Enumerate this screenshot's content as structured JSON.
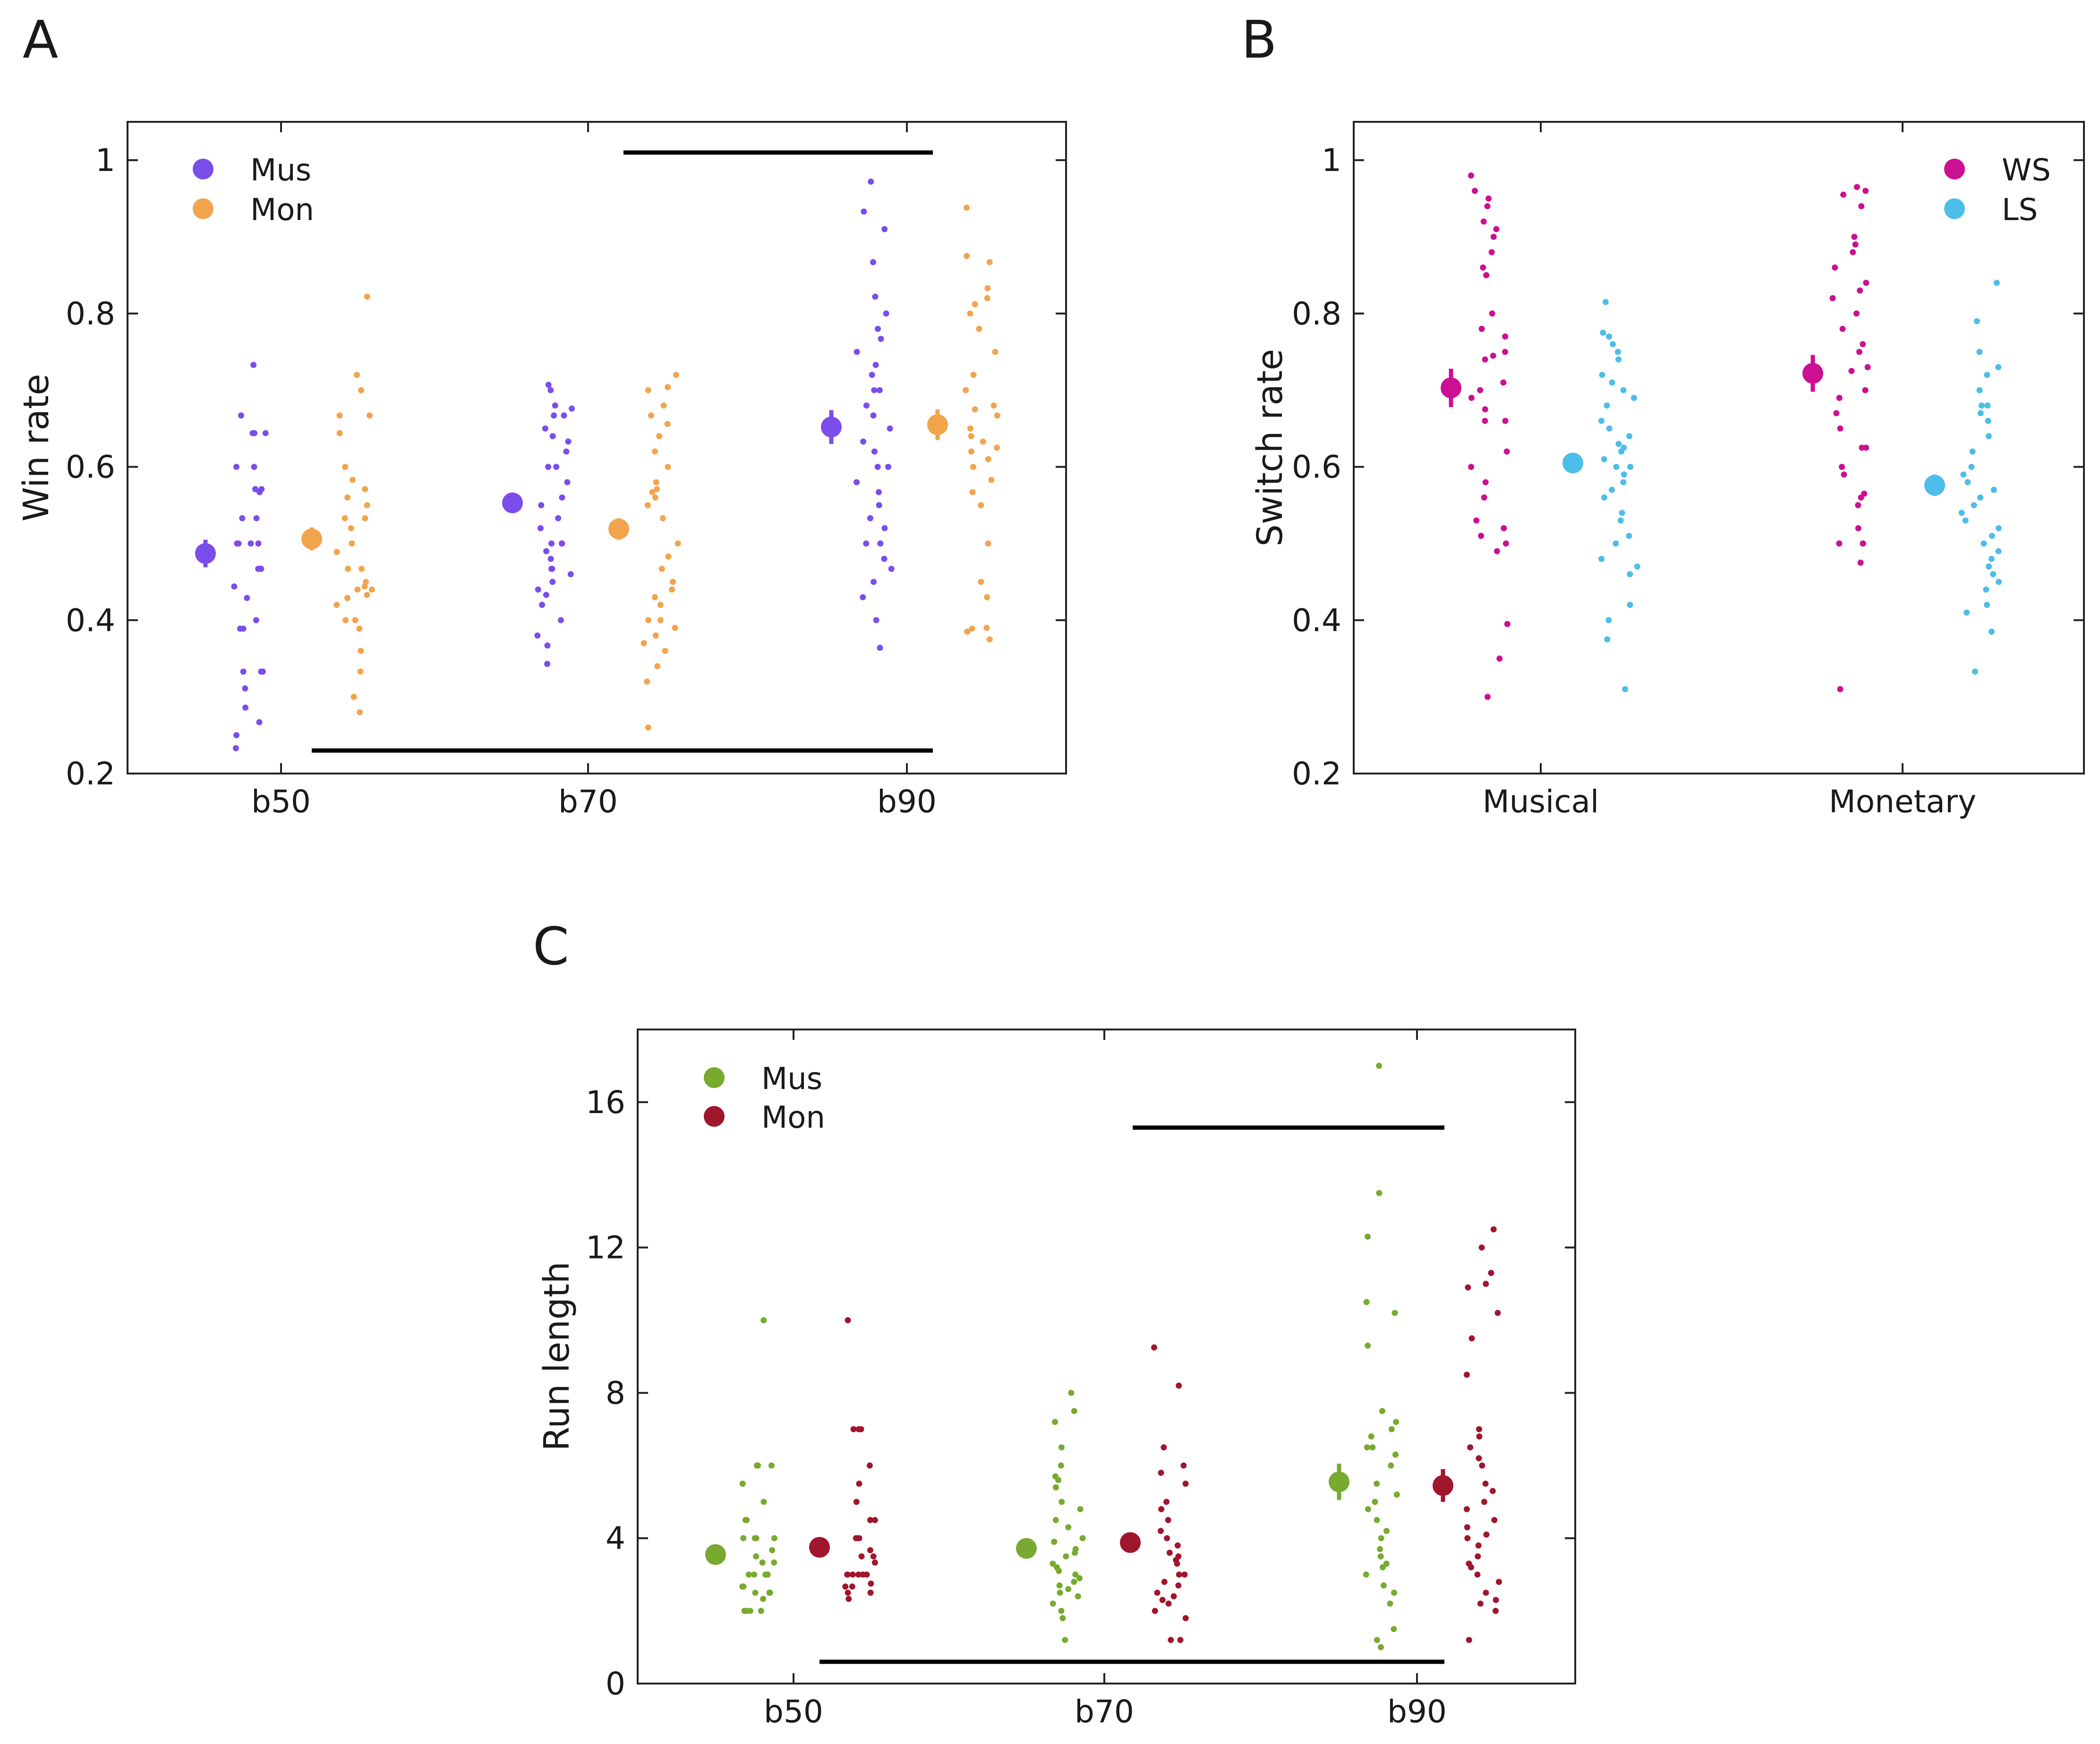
{
  "panels": [
    {
      "letter": "A",
      "ylabel": "Win rate",
      "yticks": [
        "0.2",
        "0.4",
        "0.6",
        "0.8",
        "1"
      ],
      "xticks": [
        "b50",
        "b70",
        "b90"
      ],
      "legend": [
        {
          "label": "Mus",
          "color": "#7b4dea"
        },
        {
          "label": "Mon",
          "color": "#f2a44c"
        }
      ]
    },
    {
      "letter": "B",
      "ylabel": "Switch rate",
      "yticks": [
        "0.2",
        "0.4",
        "0.6",
        "0.8",
        "1"
      ],
      "xticks": [
        "Musical",
        "Monetary"
      ],
      "legend": [
        {
          "label": "WS",
          "color": "#cc0f93"
        },
        {
          "label": "LS",
          "color": "#4dbde9"
        }
      ]
    },
    {
      "letter": "C",
      "ylabel": "Run length",
      "yticks": [
        "0",
        "4",
        "8",
        "12",
        "16"
      ],
      "xticks": [
        "b50",
        "b70",
        "b90"
      ],
      "legend": [
        {
          "label": "Mus",
          "color": "#77aa2f"
        },
        {
          "label": "Mon",
          "color": "#a0162d"
        }
      ]
    }
  ],
  "chart_data": [
    {
      "type": "scatter",
      "panel": "A",
      "title": "",
      "xlabel": "",
      "ylabel": "Win rate",
      "ylim": [
        0.2,
        1.05
      ],
      "categories": [
        "b50",
        "b70",
        "b90"
      ],
      "series": [
        {
          "name": "Mus",
          "color": "#7b4dea",
          "mean": [
            0.487,
            0.553,
            0.652
          ],
          "error": [
            0.018,
            0.012,
            0.022
          ],
          "points": [
            [
              0.733,
              0.667,
              0.644,
              0.644,
              0.644,
              0.6,
              0.6,
              0.571,
              0.571,
              0.567,
              0.533,
              0.533,
              0.5,
              0.5,
              0.5,
              0.5,
              0.5,
              0.467,
              0.467,
              0.467,
              0.444,
              0.429,
              0.4,
              0.389,
              0.389,
              0.333,
              0.333,
              0.333,
              0.311,
              0.286,
              0.267,
              0.25,
              0.233
            ],
            [
              0.707,
              0.7,
              0.68,
              0.676,
              0.667,
              0.667,
              0.65,
              0.64,
              0.633,
              0.62,
              0.6,
              0.6,
              0.58,
              0.56,
              0.55,
              0.533,
              0.52,
              0.5,
              0.5,
              0.5,
              0.49,
              0.48,
              0.467,
              0.467,
              0.46,
              0.45,
              0.44,
              0.433,
              0.42,
              0.4,
              0.38,
              0.367,
              0.343
            ],
            [
              0.972,
              0.933,
              0.91,
              0.867,
              0.822,
              0.8,
              0.78,
              0.767,
              0.75,
              0.733,
              0.72,
              0.7,
              0.7,
              0.68,
              0.667,
              0.65,
              0.633,
              0.62,
              0.6,
              0.6,
              0.58,
              0.567,
              0.55,
              0.533,
              0.52,
              0.5,
              0.5,
              0.48,
              0.467,
              0.45,
              0.43,
              0.4,
              0.364
            ]
          ]
        },
        {
          "name": "Mon",
          "color": "#f2a44c",
          "mean": [
            0.506,
            0.519,
            0.655
          ],
          "error": [
            0.015,
            0.014,
            0.02
          ],
          "points": [
            [
              0.822,
              0.72,
              0.7,
              0.667,
              0.667,
              0.644,
              0.6,
              0.583,
              0.571,
              0.56,
              0.55,
              0.533,
              0.533,
              0.52,
              0.5,
              0.489,
              0.467,
              0.467,
              0.45,
              0.444,
              0.44,
              0.44,
              0.433,
              0.429,
              0.42,
              0.4,
              0.4,
              0.389,
              0.36,
              0.333,
              0.3,
              0.28
            ],
            [
              0.72,
              0.704,
              0.7,
              0.68,
              0.667,
              0.656,
              0.64,
              0.62,
              0.6,
              0.58,
              0.571,
              0.567,
              0.56,
              0.55,
              0.533,
              0.5,
              0.483,
              0.467,
              0.45,
              0.44,
              0.43,
              0.42,
              0.4,
              0.4,
              0.39,
              0.38,
              0.37,
              0.36,
              0.34,
              0.32,
              0.26
            ],
            [
              0.938,
              0.875,
              0.867,
              0.833,
              0.82,
              0.812,
              0.8,
              0.78,
              0.75,
              0.72,
              0.7,
              0.68,
              0.675,
              0.667,
              0.65,
              0.64,
              0.633,
              0.625,
              0.62,
              0.61,
              0.6,
              0.583,
              0.567,
              0.55,
              0.5,
              0.45,
              0.43,
              0.39,
              0.389,
              0.385,
              0.375
            ]
          ]
        }
      ],
      "significance_bars": [
        {
          "from": "b50 Mon",
          "to": "b90 Mon",
          "y": 0.23
        },
        {
          "from": "b70 Mon",
          "to": "b90 Mon",
          "y": 1.01
        }
      ]
    },
    {
      "type": "scatter",
      "panel": "B",
      "title": "",
      "xlabel": "",
      "ylabel": "Switch rate",
      "ylim": [
        0.2,
        1.05
      ],
      "categories": [
        "Musical",
        "Monetary"
      ],
      "series": [
        {
          "name": "WS",
          "color": "#cc0f93",
          "mean": [
            0.703,
            0.722
          ],
          "error": [
            0.025,
            0.024
          ],
          "points": [
            [
              0.98,
              0.96,
              0.95,
              0.94,
              0.92,
              0.91,
              0.9,
              0.88,
              0.86,
              0.85,
              0.85,
              0.8,
              0.78,
              0.77,
              0.75,
              0.745,
              0.74,
              0.71,
              0.7,
              0.69,
              0.675,
              0.66,
              0.66,
              0.62,
              0.6,
              0.58,
              0.56,
              0.53,
              0.52,
              0.51,
              0.5,
              0.49,
              0.395,
              0.35,
              0.3
            ],
            [
              0.965,
              0.96,
              0.955,
              0.94,
              0.9,
              0.89,
              0.88,
              0.86,
              0.84,
              0.83,
              0.82,
              0.8,
              0.78,
              0.76,
              0.75,
              0.73,
              0.725,
              0.7,
              0.69,
              0.67,
              0.65,
              0.625,
              0.625,
              0.6,
              0.59,
              0.565,
              0.56,
              0.55,
              0.52,
              0.5,
              0.5,
              0.5,
              0.475,
              0.31
            ]
          ]
        },
        {
          "name": "LS",
          "color": "#4dbde9",
          "mean": [
            0.605,
            0.576
          ],
          "error": [
            0.013,
            0.014
          ],
          "points": [
            [
              0.815,
              0.775,
              0.77,
              0.76,
              0.75,
              0.74,
              0.72,
              0.71,
              0.7,
              0.69,
              0.68,
              0.66,
              0.65,
              0.64,
              0.63,
              0.625,
              0.62,
              0.61,
              0.6,
              0.6,
              0.59,
              0.58,
              0.57,
              0.56,
              0.54,
              0.53,
              0.51,
              0.5,
              0.48,
              0.47,
              0.46,
              0.42,
              0.4,
              0.375,
              0.31
            ],
            [
              0.84,
              0.79,
              0.75,
              0.73,
              0.72,
              0.7,
              0.68,
              0.68,
              0.67,
              0.66,
              0.64,
              0.62,
              0.6,
              0.59,
              0.58,
              0.57,
              0.56,
              0.55,
              0.54,
              0.53,
              0.52,
              0.51,
              0.5,
              0.49,
              0.48,
              0.47,
              0.46,
              0.45,
              0.44,
              0.42,
              0.41,
              0.385,
              0.333
            ]
          ]
        }
      ]
    },
    {
      "type": "scatter",
      "panel": "C",
      "title": "",
      "xlabel": "",
      "ylabel": "Run length",
      "ylim": [
        0,
        18
      ],
      "categories": [
        "b50",
        "b70",
        "b90"
      ],
      "series": [
        {
          "name": "Mus",
          "color": "#77aa2f",
          "mean": [
            3.55,
            3.72,
            5.55
          ],
          "error": [
            0.2,
            0.2,
            0.5
          ],
          "points": [
            [
              10.0,
              6.0,
              6.0,
              6.0,
              5.5,
              5.0,
              4.5,
              4.5,
              4.0,
              4.0,
              4.0,
              4.0,
              3.67,
              3.5,
              3.33,
              3.33,
              3.0,
              3.0,
              3.0,
              3.0,
              3.0,
              2.67,
              2.67,
              2.5,
              2.5,
              2.5,
              2.33,
              2.0,
              2.0,
              2.0,
              2.0
            ],
            [
              8.0,
              7.5,
              7.2,
              6.5,
              6.0,
              5.7,
              5.6,
              5.4,
              5.0,
              4.8,
              4.5,
              4.3,
              4.0,
              3.9,
              3.7,
              3.6,
              3.5,
              3.3,
              3.2,
              3.1,
              3.0,
              2.9,
              2.8,
              2.7,
              2.6,
              2.5,
              2.4,
              2.2,
              2.0,
              1.8,
              1.2
            ],
            [
              17.0,
              13.5,
              12.3,
              10.5,
              10.2,
              9.3,
              7.5,
              7.2,
              7.0,
              6.8,
              6.5,
              6.5,
              6.3,
              6.0,
              5.5,
              5.2,
              5.0,
              4.8,
              4.5,
              4.2,
              4.0,
              3.7,
              3.5,
              3.3,
              3.2,
              3.0,
              2.7,
              2.5,
              2.2,
              1.5,
              1.2,
              1.0
            ]
          ]
        },
        {
          "name": "Mon",
          "color": "#a0162d",
          "mean": [
            3.75,
            3.88,
            5.45
          ],
          "error": [
            0.18,
            0.2,
            0.45
          ],
          "points": [
            [
              10.0,
              7.0,
              7.0,
              7.0,
              6.0,
              5.5,
              5.0,
              4.5,
              4.5,
              4.0,
              4.0,
              4.0,
              3.67,
              3.5,
              3.5,
              3.33,
              3.33,
              3.0,
              3.0,
              3.0,
              3.0,
              3.0,
              3.0,
              2.75,
              2.67,
              2.67,
              2.5,
              2.5,
              2.33
            ],
            [
              9.25,
              8.2,
              6.5,
              6.0,
              5.8,
              5.5,
              5.0,
              4.8,
              4.5,
              4.2,
              4.0,
              3.8,
              3.6,
              3.5,
              3.4,
              3.3,
              3.0,
              3.0,
              2.8,
              2.7,
              2.5,
              2.4,
              2.3,
              2.2,
              2.0,
              1.8,
              1.2,
              1.2
            ],
            [
              12.5,
              12.0,
              11.3,
              11.0,
              10.9,
              10.2,
              9.5,
              8.5,
              7.0,
              6.8,
              6.5,
              6.2,
              6.0,
              5.5,
              5.3,
              5.0,
              4.8,
              4.5,
              4.3,
              4.1,
              4.0,
              3.8,
              3.5,
              3.3,
              3.2,
              3.0,
              2.8,
              2.5,
              2.3,
              2.2,
              2.0,
              1.2
            ]
          ]
        }
      ],
      "significance_bars": [
        {
          "from": "b50 Mon",
          "to": "b90 Mon",
          "y": 0.6
        },
        {
          "from": "b70 Mon",
          "to": "b90 Mon",
          "y": 15.3
        }
      ]
    }
  ]
}
